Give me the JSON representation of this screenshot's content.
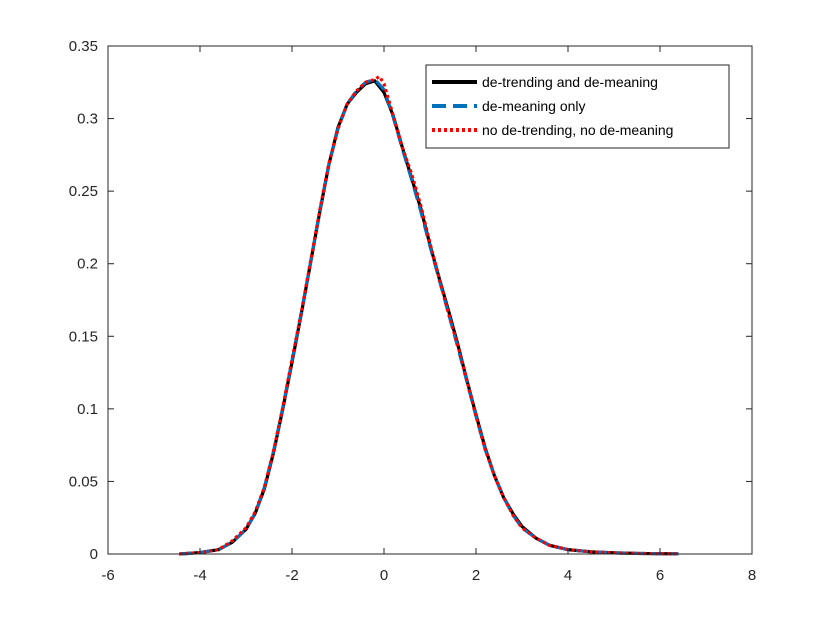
{
  "chart_data": {
    "type": "line",
    "title": "",
    "xlabel": "",
    "ylabel": "",
    "xlim": [
      -6,
      8
    ],
    "ylim": [
      0,
      0.35
    ],
    "xticks": [
      -6,
      -4,
      -2,
      0,
      2,
      4,
      6,
      8
    ],
    "yticks": [
      0,
      0.05,
      0.1,
      0.15,
      0.2,
      0.25,
      0.3,
      0.35
    ],
    "xtick_labels": [
      "-6",
      "-4",
      "-2",
      "0",
      "2",
      "4",
      "6",
      "8"
    ],
    "ytick_labels": [
      "0",
      "0.05",
      "0.1",
      "0.15",
      "0.2",
      "0.25",
      "0.3",
      "0.35"
    ],
    "grid": false,
    "legend_position": "top-right",
    "series": [
      {
        "name": "de-trending and de-meaning",
        "color": "#000000",
        "style": "solid",
        "x": [
          -4.45,
          -4.0,
          -3.6,
          -3.3,
          -3.0,
          -2.8,
          -2.6,
          -2.4,
          -2.2,
          -2.0,
          -1.8,
          -1.6,
          -1.4,
          -1.2,
          -1.0,
          -0.8,
          -0.6,
          -0.4,
          -0.2,
          0.0,
          0.2,
          0.4,
          0.6,
          0.8,
          1.0,
          1.2,
          1.4,
          1.6,
          1.8,
          2.0,
          2.2,
          2.4,
          2.6,
          2.8,
          3.0,
          3.3,
          3.6,
          4.0,
          4.5,
          5.0,
          5.5,
          6.0,
          6.4
        ],
        "values": [
          0.0,
          0.001,
          0.003,
          0.008,
          0.017,
          0.028,
          0.045,
          0.07,
          0.1,
          0.132,
          0.165,
          0.2,
          0.235,
          0.268,
          0.294,
          0.31,
          0.318,
          0.324,
          0.326,
          0.318,
          0.302,
          0.28,
          0.259,
          0.238,
          0.213,
          0.19,
          0.168,
          0.145,
          0.12,
          0.096,
          0.073,
          0.054,
          0.039,
          0.028,
          0.019,
          0.011,
          0.006,
          0.003,
          0.0015,
          0.0008,
          0.0004,
          0.0002,
          0.0001
        ]
      },
      {
        "name": "de-meaning only",
        "color": "#0072BD",
        "style": "dashed",
        "x": [
          -4.4,
          -4.0,
          -3.6,
          -3.3,
          -3.0,
          -2.8,
          -2.6,
          -2.4,
          -2.2,
          -2.0,
          -1.8,
          -1.6,
          -1.4,
          -1.2,
          -1.0,
          -0.8,
          -0.6,
          -0.4,
          -0.2,
          0.0,
          0.2,
          0.4,
          0.6,
          0.8,
          1.0,
          1.2,
          1.4,
          1.6,
          1.8,
          2.0,
          2.2,
          2.4,
          2.6,
          2.8,
          3.0,
          3.3,
          3.6,
          4.0,
          4.5,
          5.0,
          5.5,
          6.0,
          6.4
        ],
        "values": [
          0.0,
          0.001,
          0.003,
          0.008,
          0.017,
          0.028,
          0.046,
          0.071,
          0.101,
          0.133,
          0.166,
          0.2,
          0.236,
          0.268,
          0.293,
          0.31,
          0.319,
          0.325,
          0.327,
          0.32,
          0.301,
          0.279,
          0.258,
          0.236,
          0.212,
          0.189,
          0.166,
          0.143,
          0.119,
          0.095,
          0.072,
          0.054,
          0.039,
          0.027,
          0.018,
          0.011,
          0.006,
          0.003,
          0.0015,
          0.0008,
          0.0004,
          0.0002,
          0.0001
        ]
      },
      {
        "name": "no de-trending, no de-meaning",
        "color": "#FF0000",
        "style": "dotted",
        "x": [
          -4.45,
          -4.0,
          -3.6,
          -3.3,
          -3.0,
          -2.8,
          -2.6,
          -2.4,
          -2.2,
          -2.0,
          -1.8,
          -1.6,
          -1.4,
          -1.2,
          -1.0,
          -0.8,
          -0.6,
          -0.4,
          -0.2,
          -0.1,
          0.0,
          0.2,
          0.4,
          0.6,
          0.8,
          1.0,
          1.2,
          1.4,
          1.6,
          1.8,
          2.0,
          2.2,
          2.4,
          2.6,
          2.8,
          3.0,
          3.3,
          3.6,
          4.0,
          4.5,
          5.0,
          5.5,
          6.0,
          6.4
        ],
        "values": [
          0.0,
          0.001,
          0.003,
          0.009,
          0.018,
          0.029,
          0.046,
          0.071,
          0.101,
          0.134,
          0.166,
          0.201,
          0.236,
          0.269,
          0.293,
          0.31,
          0.319,
          0.325,
          0.327,
          0.329,
          0.324,
          0.302,
          0.28,
          0.262,
          0.24,
          0.214,
          0.19,
          0.166,
          0.144,
          0.12,
          0.095,
          0.072,
          0.054,
          0.039,
          0.027,
          0.018,
          0.011,
          0.006,
          0.003,
          0.0015,
          0.0008,
          0.0004,
          0.0002,
          0.0001
        ]
      }
    ]
  }
}
